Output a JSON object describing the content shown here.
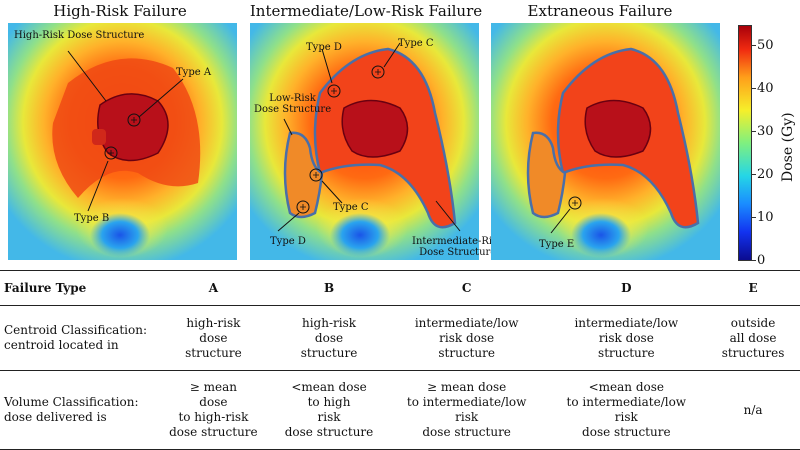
{
  "panels": [
    {
      "title": "High-Risk Failure"
    },
    {
      "title": "Intermediate/Low-Risk Failure"
    },
    {
      "title": "Extraneous Failure"
    }
  ],
  "annotations": {
    "high_risk_dose_structure": "High-Risk Dose Structure",
    "type_a": "Type A",
    "type_b": "Type B",
    "type_d_top": "Type D",
    "type_c_top": "Type C",
    "low_risk_dose_structure_1": "Low-Risk",
    "low_risk_dose_structure_2": "Dose Structure",
    "type_c_bottom": "Type C",
    "type_d_bottom": "Type D",
    "intermediate_risk_1": "Intermediate-Risk",
    "intermediate_risk_2": "Dose Structure",
    "type_e": "Type E"
  },
  "colorbar": {
    "label": "Dose (Gy)",
    "ticks": [
      "50",
      "40",
      "30",
      "20",
      "10",
      "0"
    ],
    "range": [
      0,
      55
    ],
    "colors": [
      "#0b0b8f",
      "#1a8cff",
      "#7ff07f",
      "#f6ef2a",
      "#ff9f1a",
      "#a8000a"
    ]
  },
  "table": {
    "headers": [
      "Failure Type",
      "A",
      "B",
      "C",
      "D",
      "E"
    ],
    "rows": [
      {
        "label": [
          "Centroid Classification:",
          "centroid located in"
        ],
        "cells": [
          [
            "high-risk",
            "dose",
            "structure"
          ],
          [
            "high-risk",
            "dose",
            "structure"
          ],
          [
            "intermediate/low",
            "risk dose",
            "structure"
          ],
          [
            "intermediate/low",
            "risk dose",
            "structure"
          ],
          [
            "outside",
            "all dose",
            "structures"
          ]
        ]
      },
      {
        "label": [
          "Volume Classification:",
          "dose delivered is"
        ],
        "cells": [
          [
            "≥ mean",
            "dose",
            "to high-risk",
            "dose structure"
          ],
          [
            "<mean dose",
            "to high",
            "risk",
            "dose structure"
          ],
          [
            "≥ mean dose",
            "to intermediate/low",
            "risk",
            "dose structure"
          ],
          [
            "<mean dose",
            "to intermediate/low",
            "risk",
            "dose structure"
          ],
          [
            "n/a"
          ]
        ]
      }
    ]
  }
}
